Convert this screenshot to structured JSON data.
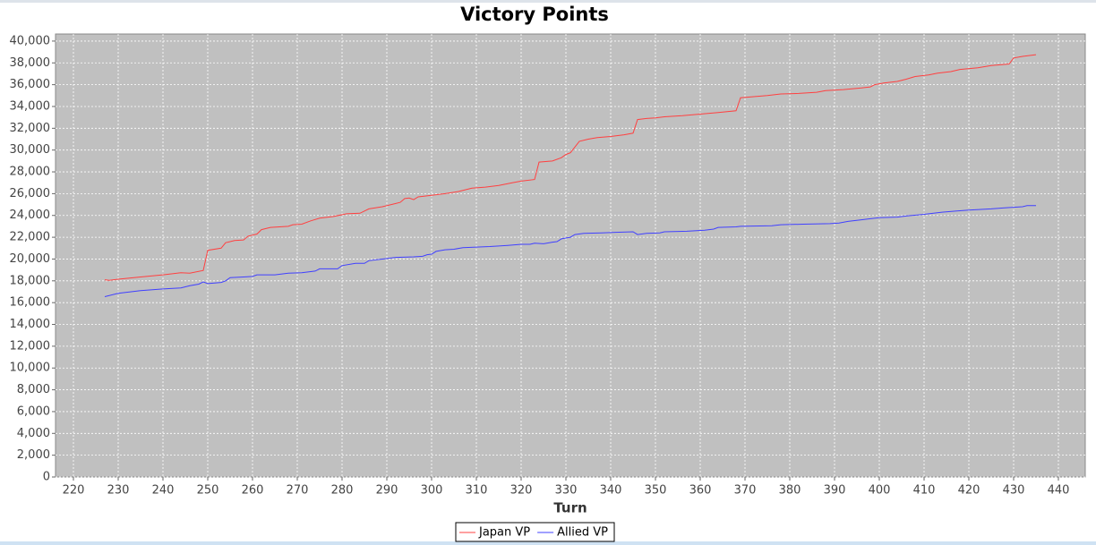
{
  "chart_data": {
    "type": "line",
    "title": "Victory Points",
    "x_label": "Turn",
    "xlim": [
      216,
      446
    ],
    "ylim": [
      0,
      40650
    ],
    "xticks": [
      220,
      230,
      240,
      250,
      260,
      270,
      280,
      290,
      300,
      310,
      320,
      330,
      340,
      350,
      360,
      370,
      380,
      390,
      400,
      410,
      420,
      430,
      440
    ],
    "yticks": [
      0,
      {
        "value": 2000,
        "label": "2,000"
      },
      {
        "value": 4000,
        "label": "4,000"
      },
      {
        "value": 6000,
        "label": "6,000"
      },
      {
        "value": 8000,
        "label": "8,000"
      },
      {
        "value": 10000,
        "label": "10,000"
      },
      {
        "value": 12000,
        "label": "12,000"
      },
      {
        "value": 14000,
        "label": "14,000"
      },
      {
        "value": 16000,
        "label": "16,000"
      },
      {
        "value": 18000,
        "label": "18,000"
      },
      {
        "value": 20000,
        "label": "20,000"
      },
      {
        "value": 22000,
        "label": "22,000"
      },
      {
        "value": 24000,
        "label": "24,000"
      },
      {
        "value": 26000,
        "label": "26,000"
      },
      {
        "value": 28000,
        "label": "28,000"
      },
      {
        "value": 30000,
        "label": "30,000"
      },
      {
        "value": 32000,
        "label": "32,000"
      },
      {
        "value": 34000,
        "label": "34,000"
      },
      {
        "value": 36000,
        "label": "36,000"
      },
      {
        "value": 38000,
        "label": "38,000"
      },
      {
        "value": 40000,
        "label": "40,000"
      }
    ],
    "grid": true,
    "series": [
      {
        "name": "Japan VP",
        "color": "#ff4040",
        "x": [
          227,
          228,
          230,
          235,
          240,
          244,
          246,
          249,
          250,
          253,
          254,
          256,
          258,
          259,
          261,
          262,
          264,
          268,
          269,
          271,
          273,
          275,
          278,
          281,
          284,
          286,
          289,
          292,
          293,
          294,
          295,
          296,
          297,
          300,
          303,
          306,
          309,
          312,
          315,
          318,
          320,
          323,
          324,
          327,
          329,
          330,
          331,
          333,
          335,
          337,
          340,
          343,
          345,
          346,
          348,
          350,
          352,
          356,
          360,
          364,
          368,
          369,
          372,
          375,
          378,
          382,
          386,
          388,
          392,
          396,
          398,
          399,
          401,
          404,
          406,
          408,
          411,
          413,
          416,
          418,
          422,
          425,
          429,
          430,
          432,
          435
        ],
        "values": [
          18100,
          18050,
          18150,
          18350,
          18550,
          18750,
          18700,
          18950,
          20800,
          21000,
          21500,
          21700,
          21750,
          22100,
          22300,
          22700,
          22900,
          23000,
          23150,
          23200,
          23500,
          23750,
          23900,
          24150,
          24200,
          24600,
          24800,
          25100,
          25200,
          25550,
          25600,
          25450,
          25700,
          25850,
          26000,
          26200,
          26500,
          26600,
          26750,
          27000,
          27150,
          27300,
          28900,
          29000,
          29300,
          29600,
          29750,
          30800,
          31000,
          31150,
          31250,
          31400,
          31550,
          32800,
          32900,
          32950,
          33050,
          33150,
          33300,
          33450,
          33600,
          34800,
          34900,
          35000,
          35150,
          35200,
          35300,
          35450,
          35550,
          35700,
          35800,
          36000,
          36150,
          36300,
          36500,
          36750,
          36900,
          37050,
          37200,
          37400,
          37550,
          37750,
          37900,
          38450,
          38600,
          38750
        ]
      },
      {
        "name": "Allied VP",
        "color": "#4040ff",
        "x": [
          227,
          230,
          235,
          240,
          244,
          246,
          248,
          249,
          250,
          253,
          254,
          255,
          258,
          260,
          261,
          265,
          268,
          271,
          274,
          275,
          279,
          280,
          283,
          285,
          286,
          289,
          292,
          296,
          298,
          299,
          300,
          301,
          303,
          305,
          307,
          310,
          313,
          317,
          320,
          322,
          323,
          325,
          327,
          328,
          329,
          331,
          332,
          334,
          338,
          341,
          345,
          346,
          348,
          351,
          352,
          357,
          361,
          363,
          364,
          368,
          369,
          376,
          378,
          383,
          389,
          391,
          393,
          396,
          398,
          400,
          404,
          406,
          410,
          414,
          417,
          420,
          425,
          428,
          432,
          433,
          435
        ],
        "values": [
          16550,
          16850,
          17100,
          17250,
          17350,
          17550,
          17700,
          17900,
          17750,
          17850,
          18000,
          18300,
          18350,
          18400,
          18550,
          18550,
          18700,
          18750,
          18900,
          19100,
          19100,
          19400,
          19600,
          19600,
          19850,
          20000,
          20150,
          20200,
          20250,
          20400,
          20450,
          20700,
          20850,
          20900,
          21050,
          21100,
          21150,
          21250,
          21350,
          21350,
          21450,
          21400,
          21550,
          21600,
          21850,
          22000,
          22250,
          22350,
          22400,
          22450,
          22500,
          22250,
          22350,
          22400,
          22500,
          22550,
          22650,
          22750,
          22900,
          22950,
          23000,
          23050,
          23150,
          23200,
          23250,
          23300,
          23450,
          23600,
          23700,
          23800,
          23850,
          23950,
          24100,
          24300,
          24400,
          24500,
          24600,
          24700,
          24800,
          24900,
          24900
        ]
      }
    ]
  }
}
